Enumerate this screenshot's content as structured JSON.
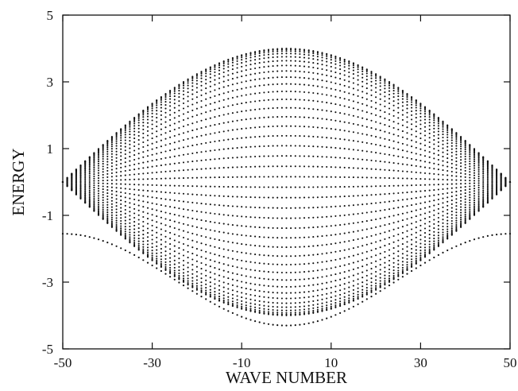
{
  "chart_data": {
    "type": "scatter",
    "title": "",
    "xlabel": "WAVE NUMBER",
    "ylabel": "ENERGY",
    "xlim": [
      -50,
      50
    ],
    "ylim": [
      -5,
      5
    ],
    "xticks": [
      -50,
      -30,
      -10,
      10,
      30,
      50
    ],
    "yticks": [
      -5,
      -3,
      -1,
      1,
      3,
      5
    ],
    "grid": false,
    "legend": "none",
    "marker_color": "#111111",
    "series": [
      {
        "description_key": "band",
        "x_range": [
          -50,
          50
        ],
        "x_step": 1,
        "energy_min": -4.0,
        "energy_max": 4.0,
        "levels_per_k": 40
      },
      {
        "description_key": "bound-state",
        "x_range": [
          -50,
          50
        ],
        "x_step": 1,
        "energy_at_center": -4.3,
        "energy_at_edges": -1.55
      }
    ]
  }
}
